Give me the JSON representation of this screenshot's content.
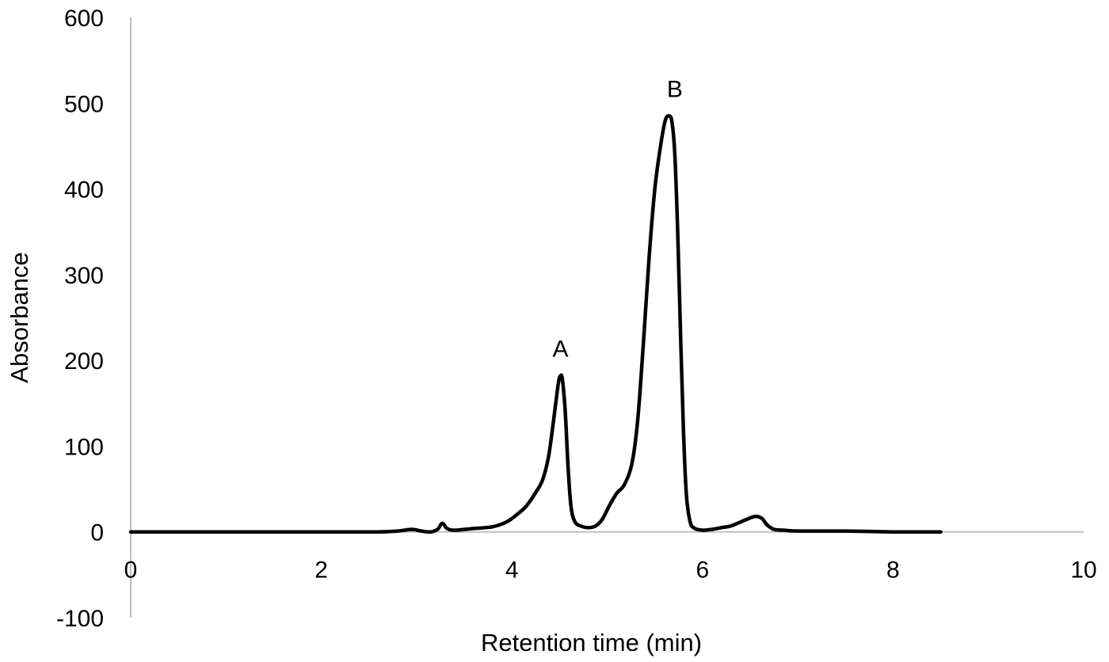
{
  "chart_data": {
    "type": "line",
    "title": "",
    "xlabel": "Retention time (min)",
    "ylabel": "Absorbance",
    "xlim": [
      0,
      10
    ],
    "ylim": [
      -100,
      600
    ],
    "x_ticks": [
      0,
      2,
      4,
      6,
      8,
      10
    ],
    "y_ticks": [
      -100,
      0,
      100,
      200,
      300,
      400,
      500,
      600
    ],
    "grid": false,
    "legend": "none",
    "colors": {
      "trace": "#000000",
      "axis": "#c0c0c0"
    },
    "series": [
      {
        "x": [
          0,
          1.0,
          2.0,
          2.6,
          2.8,
          2.95,
          3.05,
          3.15,
          3.22,
          3.27,
          3.32,
          3.4,
          3.6,
          3.8,
          3.95,
          4.05,
          4.15,
          4.25,
          4.32,
          4.38,
          4.42,
          4.46,
          4.49,
          4.51,
          4.53,
          4.56,
          4.59,
          4.62,
          4.66,
          4.72,
          4.8,
          4.88,
          4.95,
          5.02,
          5.1,
          5.18,
          5.26,
          5.32,
          5.38,
          5.44,
          5.5,
          5.56,
          5.61,
          5.65,
          5.68,
          5.71,
          5.74,
          5.77,
          5.8,
          5.83,
          5.87,
          5.92,
          6.0,
          6.1,
          6.2,
          6.3,
          6.45,
          6.55,
          6.62,
          6.68,
          6.75,
          6.85,
          7.0,
          7.5,
          8.0,
          8.5
        ],
        "y": [
          0,
          0,
          0,
          0,
          1,
          3,
          1,
          0,
          3,
          10,
          4,
          2,
          4,
          6,
          12,
          20,
          30,
          46,
          60,
          85,
          115,
          150,
          175,
          182,
          178,
          140,
          75,
          30,
          12,
          7,
          5,
          7,
          15,
          30,
          45,
          55,
          80,
          130,
          220,
          320,
          400,
          450,
          480,
          485,
          478,
          440,
          350,
          230,
          120,
          45,
          12,
          4,
          2,
          3,
          5,
          7,
          14,
          18,
          16,
          8,
          3,
          2,
          1,
          1,
          0,
          0
        ]
      }
    ],
    "annotations": [
      {
        "text": "A",
        "x": 4.51,
        "y": 182
      },
      {
        "text": "B",
        "x": 5.71,
        "y": 485
      }
    ]
  }
}
